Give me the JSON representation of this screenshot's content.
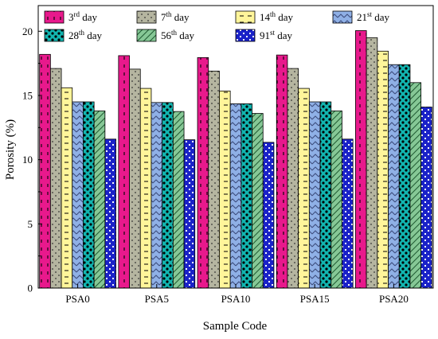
{
  "chart_data": {
    "type": "bar",
    "xlabel": "Sample Code",
    "ylabel": "Porosity (%)",
    "ylim": [
      0,
      22
    ],
    "yticks": [
      0,
      5,
      10,
      15,
      20
    ],
    "categories": [
      "PSA0",
      "PSA5",
      "PSA10",
      "PSA15",
      "PSA20"
    ],
    "legend_position": "top",
    "series": [
      {
        "name": "3rd day",
        "name_base": "3",
        "name_sup": "rd",
        "name_suffix": " day",
        "color": "#e8198c",
        "pattern": "dash-vertical",
        "values": [
          18.2,
          18.1,
          17.95,
          18.15,
          20.05
        ]
      },
      {
        "name": "7th day",
        "name_base": "7",
        "name_sup": "th",
        "name_suffix": " day",
        "color": "#b5b5a0",
        "pattern": "dots",
        "values": [
          17.1,
          17.05,
          16.9,
          17.1,
          19.5
        ]
      },
      {
        "name": "14th day",
        "name_base": "14",
        "name_sup": "th",
        "name_suffix": " day",
        "color": "#fff59a",
        "pattern": "dash-horizontal",
        "values": [
          15.6,
          15.55,
          15.35,
          15.55,
          18.45
        ]
      },
      {
        "name": "21st day",
        "name_base": "21",
        "name_sup": "st",
        "name_suffix": " day",
        "color": "#8fb0e6",
        "pattern": "zigzag",
        "values": [
          14.5,
          14.45,
          14.35,
          14.5,
          17.4
        ]
      },
      {
        "name": "28th day",
        "name_base": "28",
        "name_sup": "th",
        "name_suffix": " day",
        "color": "#12b5b0",
        "pattern": "checker",
        "values": [
          14.5,
          14.45,
          14.35,
          14.5,
          17.4
        ]
      },
      {
        "name": "56th day",
        "name_base": "56",
        "name_sup": "th",
        "name_suffix": " day",
        "color": "#86c896",
        "pattern": "diagonal",
        "values": [
          13.8,
          13.75,
          13.6,
          13.8,
          16.0
        ]
      },
      {
        "name": "91st day",
        "name_base": "91",
        "name_sup": "st",
        "name_suffix": " day",
        "color": "#1a22c8",
        "pattern": "cross-dots",
        "values": [
          11.6,
          11.55,
          11.35,
          11.6,
          14.1
        ]
      }
    ]
  }
}
